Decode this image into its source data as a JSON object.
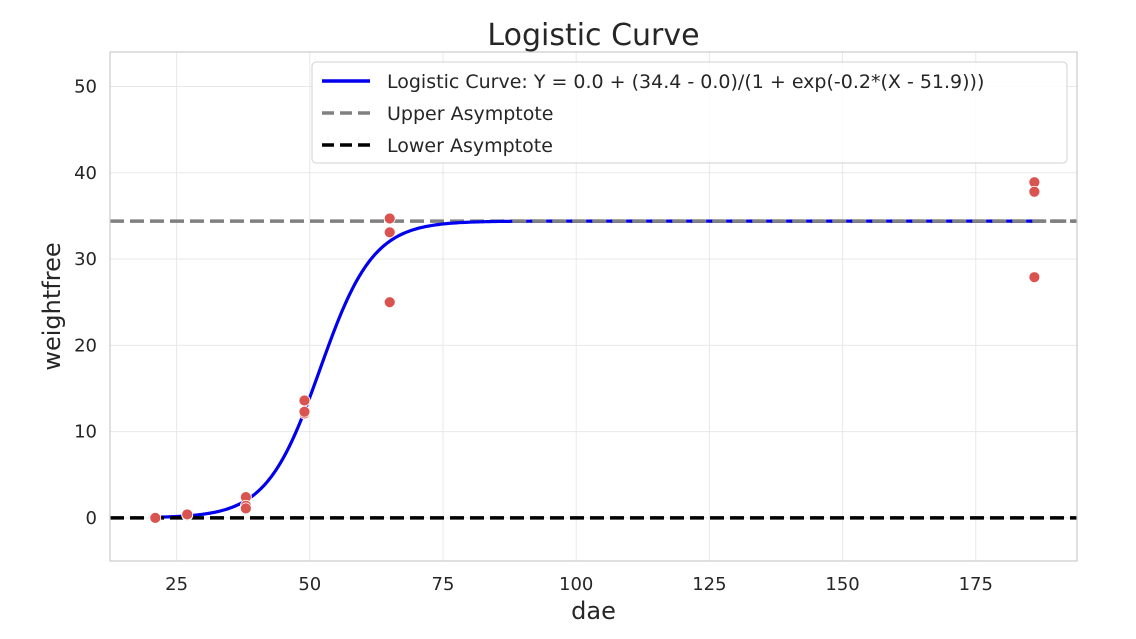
{
  "chart_data": {
    "type": "scatter",
    "title": "Logistic Curve",
    "xlabel": "dae",
    "ylabel": "weightfree",
    "xlim": [
      12.5,
      194
    ],
    "ylim": [
      -5,
      54
    ],
    "xticks": [
      25,
      50,
      75,
      100,
      125,
      150,
      175
    ],
    "yticks": [
      0,
      10,
      20,
      30,
      40,
      50
    ],
    "grid": true,
    "legend_position": "top-right",
    "points": {
      "color": "#d9534f",
      "x": [
        21,
        27,
        27,
        38,
        38,
        38,
        49,
        49,
        49,
        65,
        65,
        65,
        186,
        186,
        186
      ],
      "y": [
        0.0,
        0.3,
        0.4,
        2.4,
        1.4,
        1.1,
        13.6,
        12.1,
        12.3,
        34.7,
        33.1,
        25.0,
        38.9,
        37.8,
        27.9
      ]
    },
    "series": [
      {
        "name": "Logistic Curve: Y = 0.0 + (34.4 - 0.0)/(1 + exp(-0.2*(X - 51.9)))",
        "kind": "curve",
        "lower": 0.0,
        "upper": 34.4,
        "rate": 0.2,
        "midpoint": 51.9,
        "x_range": [
          21,
          186
        ],
        "color": "#0000ee",
        "style": "solid"
      },
      {
        "name": "Upper Asymptote",
        "kind": "hline",
        "value": 34.4,
        "color": "#808080",
        "style": "dashed"
      },
      {
        "name": "Lower Asymptote",
        "kind": "hline",
        "value": 0.0,
        "color": "#000000",
        "style": "dashed"
      }
    ]
  }
}
